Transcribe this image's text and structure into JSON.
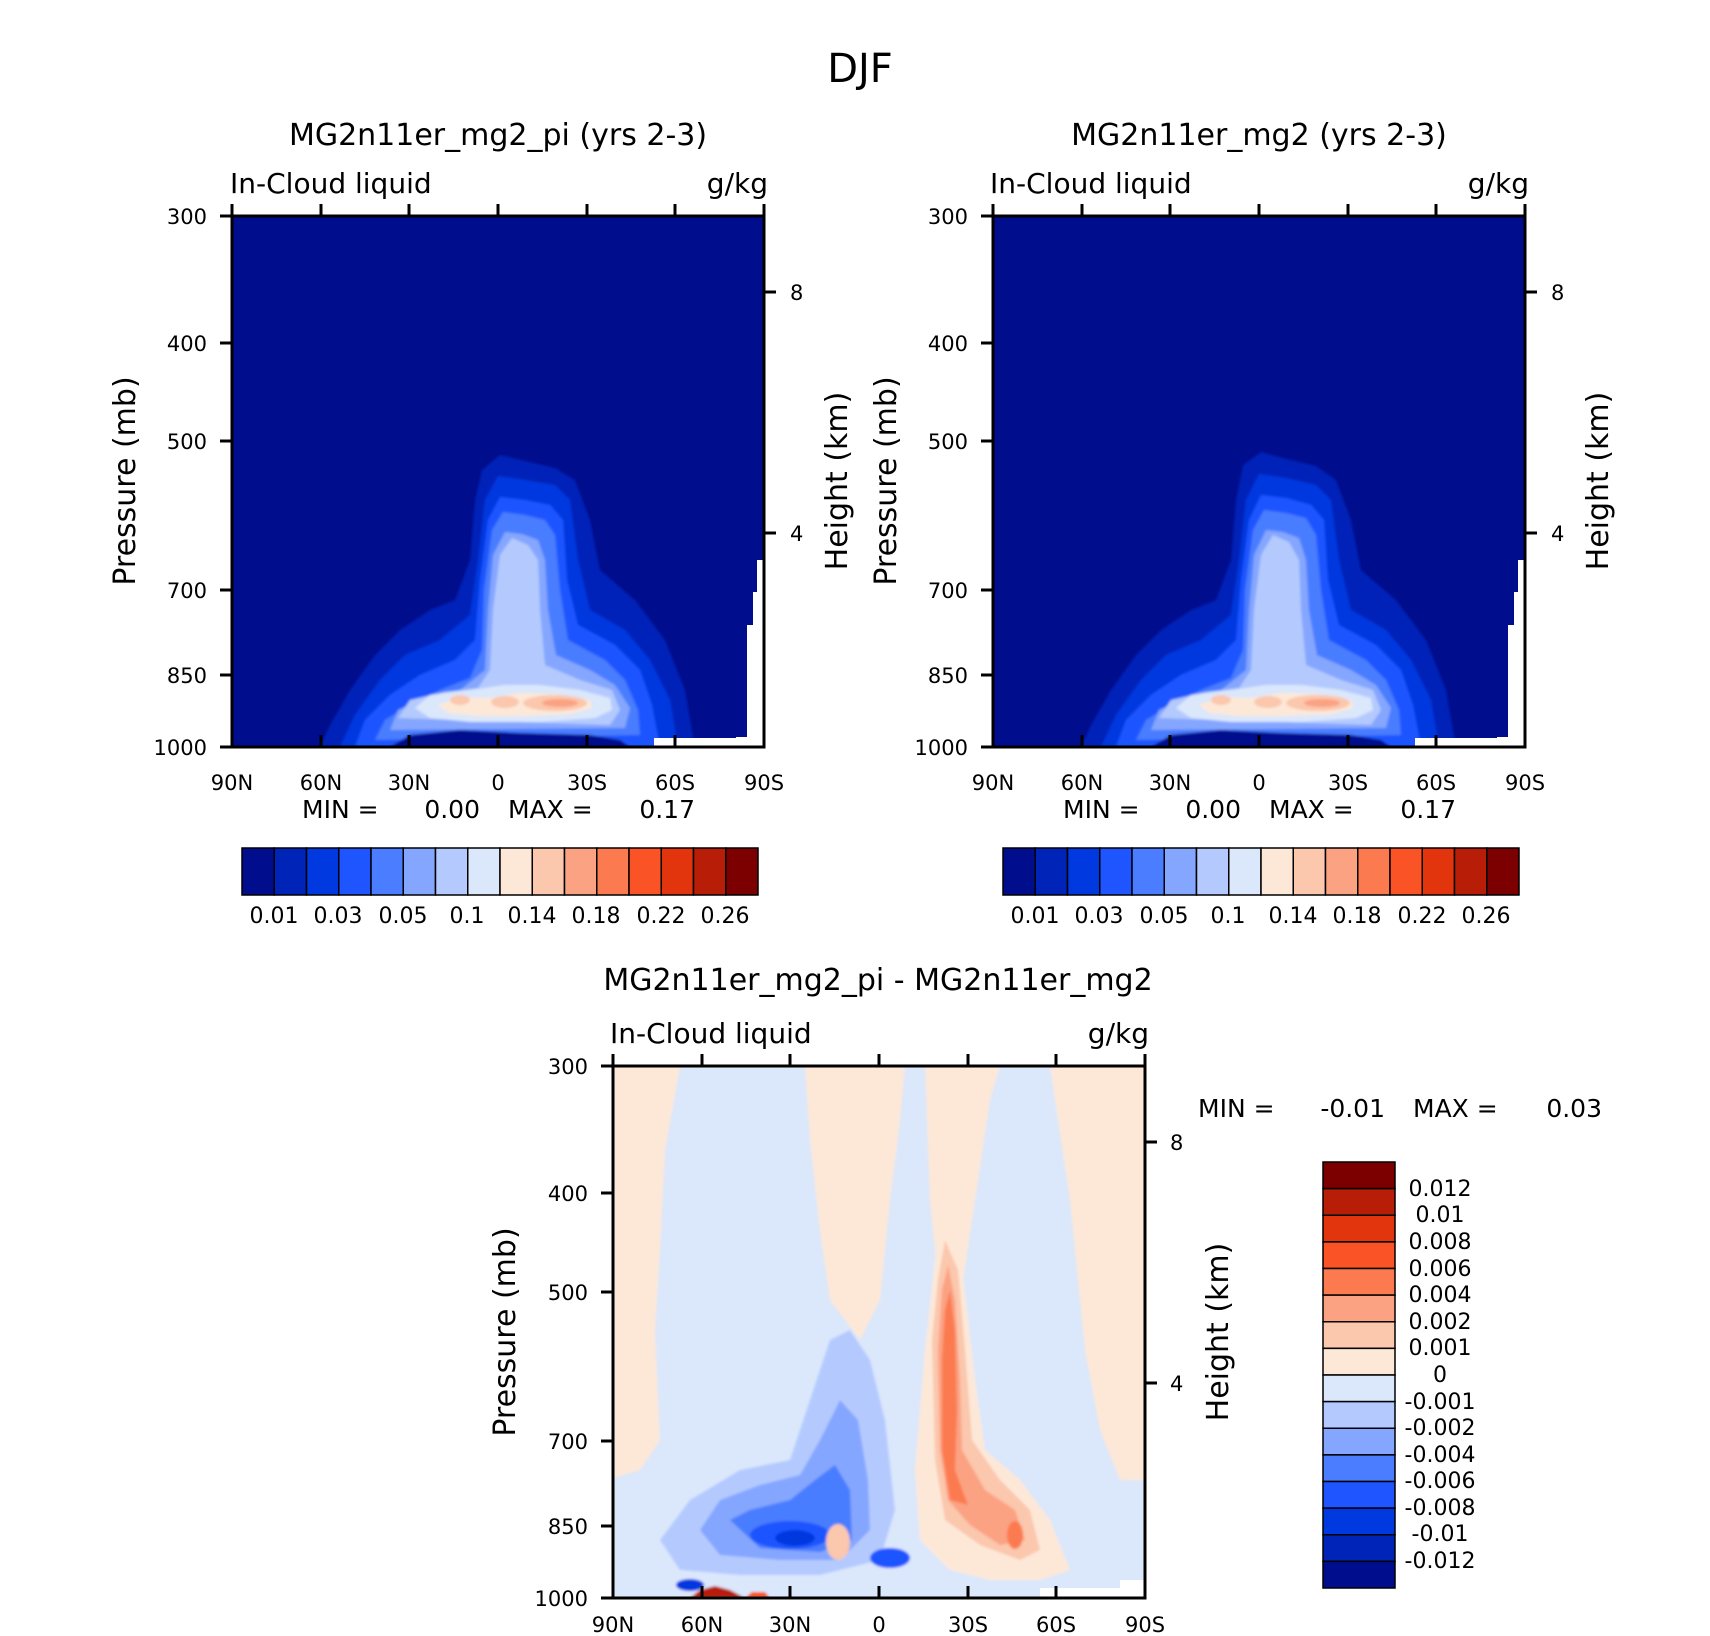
{
  "figure_title": "DJF",
  "chart_data": [
    {
      "type": "heatmap",
      "subtype": "filled-contour latitude-pressure cross section",
      "title": "MG2n11er_mg2_pi (yrs 2-3)",
      "left_label": "In-Cloud liquid",
      "right_label": "g/kg",
      "ylabel": "Pressure (mb)",
      "ylabel2": "Height (km)",
      "x_ticks": [
        "90N",
        "60N",
        "30N",
        "0",
        "30S",
        "60S",
        "90S"
      ],
      "y_ticks": [
        "300",
        "400",
        "500",
        "700",
        "850",
        "1000"
      ],
      "y2_ticks": [
        "8",
        "4"
      ],
      "ylim": [
        1000,
        300
      ],
      "y_scale": "log",
      "min_label": "MIN =",
      "min_value": "0.00",
      "max_label": "MAX =",
      "max_value": "0.17",
      "colorbar_orientation": "horizontal",
      "colorbar_labels": [
        "0.01",
        "0.03",
        "0.05",
        "0.1",
        "0.14",
        "0.18",
        "0.22",
        "0.26"
      ],
      "colors": [
        "#000d8c",
        "#0024b8",
        "#0039e0",
        "#1f55ff",
        "#4a7dff",
        "#85a6ff",
        "#b4caff",
        "#dbe7fb",
        "#fde8d8",
        "#fbc7ad",
        "#fba283",
        "#fc7a4f",
        "#fa5426",
        "#e2340d",
        "#b81e07",
        "#7d0000"
      ],
      "level_index": {
        "background": 0,
        "l1": 1,
        "l2": 2,
        "l3": 3,
        "l4": 4,
        "l5": 5,
        "l6": 6,
        "l7": 7,
        "l8": 8,
        "l9": 9,
        "l10": 10
      },
      "missing_color": "#ffffff"
    },
    {
      "type": "heatmap",
      "subtype": "filled-contour latitude-pressure cross section",
      "title": "MG2n11er_mg2 (yrs 2-3)",
      "left_label": "In-Cloud liquid",
      "right_label": "g/kg",
      "ylabel": "Pressure (mb)",
      "ylabel2": "Height (km)",
      "x_ticks": [
        "90N",
        "60N",
        "30N",
        "0",
        "30S",
        "60S",
        "90S"
      ],
      "y_ticks": [
        "300",
        "400",
        "500",
        "700",
        "850",
        "1000"
      ],
      "y2_ticks": [
        "8",
        "4"
      ],
      "ylim": [
        1000,
        300
      ],
      "y_scale": "log",
      "min_label": "MIN =",
      "min_value": "0.00",
      "max_label": "MAX =",
      "max_value": "0.17",
      "colorbar_orientation": "horizontal",
      "colorbar_labels": [
        "0.01",
        "0.03",
        "0.05",
        "0.1",
        "0.14",
        "0.18",
        "0.22",
        "0.26"
      ],
      "colors": [
        "#000d8c",
        "#0024b8",
        "#0039e0",
        "#1f55ff",
        "#4a7dff",
        "#85a6ff",
        "#b4caff",
        "#dbe7fb",
        "#fde8d8",
        "#fbc7ad",
        "#fba283",
        "#fc7a4f",
        "#fa5426",
        "#e2340d",
        "#b81e07",
        "#7d0000"
      ],
      "missing_color": "#ffffff"
    },
    {
      "type": "heatmap",
      "subtype": "filled-contour latitude-pressure difference",
      "title": "MG2n11er_mg2_pi - MG2n11er_mg2",
      "left_label": "In-Cloud liquid",
      "right_label": "g/kg",
      "ylabel": "Pressure (mb)",
      "ylabel2": "Height (km)",
      "x_ticks": [
        "90N",
        "60N",
        "30N",
        "0",
        "30S",
        "60S",
        "90S"
      ],
      "y_ticks": [
        "300",
        "400",
        "500",
        "700",
        "850",
        "1000"
      ],
      "y2_ticks": [
        "8",
        "4"
      ],
      "ylim": [
        1000,
        300
      ],
      "y_scale": "log",
      "min_label": "MIN =",
      "min_value": "-0.01",
      "max_label": "MAX =",
      "max_value": "0.03",
      "colorbar_orientation": "vertical",
      "colorbar_labels": [
        "0.012",
        "0.01",
        "0.008",
        "0.006",
        "0.004",
        "0.002",
        "0.001",
        "0",
        "-0.001",
        "-0.002",
        "-0.004",
        "-0.006",
        "-0.008",
        "-0.01",
        "-0.012"
      ],
      "colors_top_to_bottom": [
        "#7d0000",
        "#b81e07",
        "#e2340d",
        "#fa5426",
        "#fc7a4f",
        "#fba283",
        "#fbc7ad",
        "#fde8d8",
        "#dbe7fb",
        "#b4caff",
        "#85a6ff",
        "#4a7dff",
        "#1f55ff",
        "#0039e0",
        "#0024b8",
        "#000d8c"
      ]
    }
  ]
}
